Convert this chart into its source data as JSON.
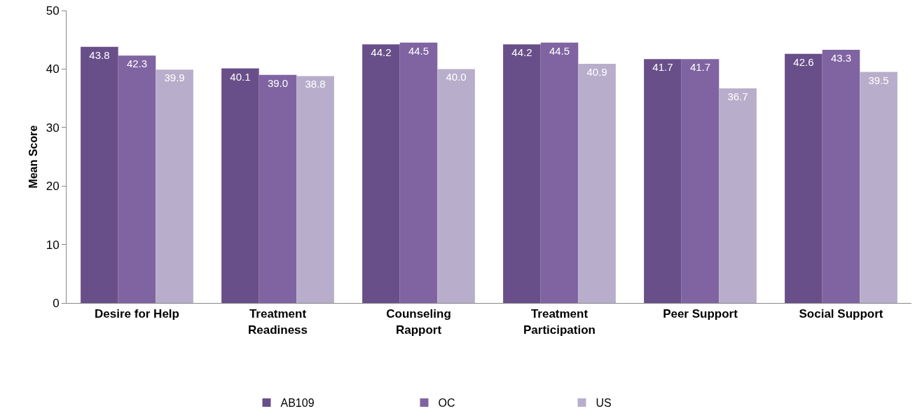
{
  "chart_data": {
    "type": "bar",
    "ylabel": "Mean Score",
    "categories": [
      "Desire for Help",
      "Treatment Readiness",
      "Counseling Rapport",
      "Treatment Participation",
      "Peer Support",
      "Social Support"
    ],
    "series": [
      {
        "name": "AB109",
        "color": "#694f89",
        "values": [
          43.8,
          40.1,
          44.2,
          44.2,
          41.7,
          42.6
        ],
        "value_labels": [
          "43.8",
          "40.1",
          "44.2",
          "44.2",
          "41.7",
          "42.6"
        ]
      },
      {
        "name": "OC",
        "color": "#8064a2",
        "values": [
          42.3,
          39.0,
          44.5,
          44.5,
          41.7,
          43.3
        ],
        "value_labels": [
          "42.3",
          "39.0",
          "44.5",
          "44.5",
          "41.7",
          "43.3"
        ]
      },
      {
        "name": "US",
        "color": "#b8aecb",
        "values": [
          39.9,
          38.8,
          40.0,
          40.9,
          36.7,
          39.5
        ],
        "value_labels": [
          "39.9",
          "38.8",
          "40.0",
          "40.9",
          "36.7",
          "39.5"
        ]
      }
    ],
    "ylim": [
      0,
      50
    ],
    "yticks": [
      0,
      10,
      20,
      30,
      40,
      50
    ],
    "grid": false,
    "legend": "bottom"
  }
}
